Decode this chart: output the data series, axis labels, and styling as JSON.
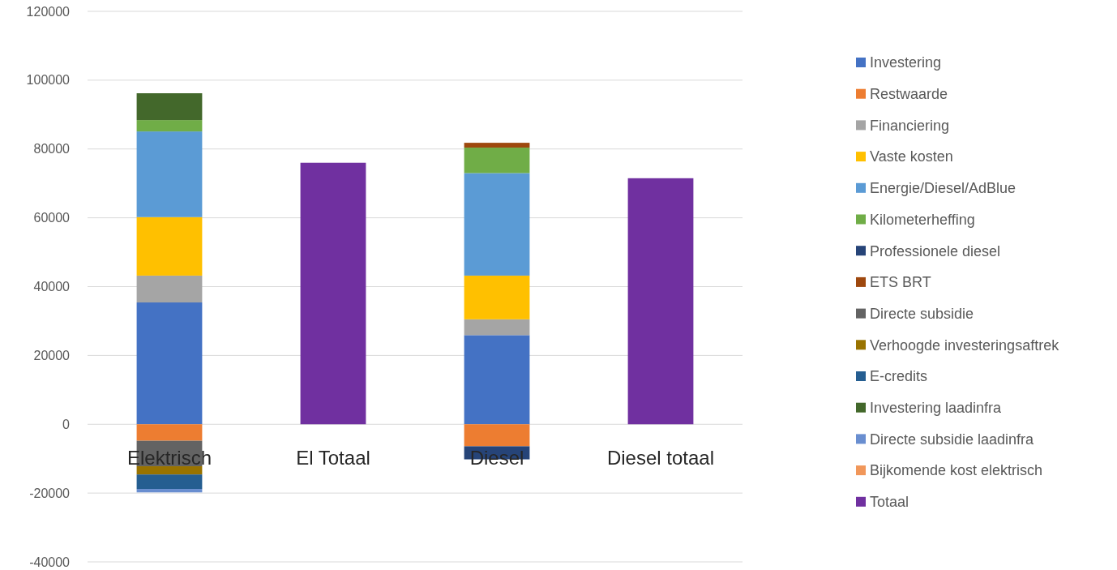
{
  "chart_data": {
    "type": "bar",
    "stacked": true,
    "categories": [
      "Elektrisch",
      "El Totaal",
      "Diesel",
      "Diesel totaal"
    ],
    "ylim": [
      -40000,
      120000
    ],
    "yticks": [
      -40000,
      -20000,
      0,
      20000,
      40000,
      60000,
      80000,
      100000,
      120000
    ],
    "grid": "y",
    "legend": "right",
    "series": [
      {
        "name": "Investering",
        "color": "#4472c4",
        "values": [
          35400,
          null,
          25900,
          null
        ]
      },
      {
        "name": "Restwaarde",
        "color": "#ed7d31",
        "values": [
          -4800,
          null,
          -6400,
          null
        ]
      },
      {
        "name": "Financiering",
        "color": "#a5a5a5",
        "values": [
          7800,
          null,
          4600,
          null
        ]
      },
      {
        "name": "Vaste kosten",
        "color": "#ffc000",
        "values": [
          17000,
          null,
          12700,
          null
        ]
      },
      {
        "name": "Energie/Diesel/AdBlue",
        "color": "#5b9bd5",
        "values": [
          24900,
          null,
          29800,
          null
        ]
      },
      {
        "name": "Kilometerheffing",
        "color": "#70ad47",
        "values": [
          3300,
          null,
          7400,
          null
        ]
      },
      {
        "name": "Professionele diesel",
        "color": "#264478",
        "values": [
          null,
          null,
          -3800,
          null
        ]
      },
      {
        "name": "ETS BRT",
        "color": "#9e480e",
        "values": [
          null,
          null,
          1400,
          null
        ]
      },
      {
        "name": "Directe subsidie",
        "color": "#636363",
        "values": [
          -7400,
          null,
          null,
          null
        ]
      },
      {
        "name": "Verhoogde investeringsaftrek",
        "color": "#997300",
        "values": [
          -2400,
          null,
          null,
          null
        ]
      },
      {
        "name": "E-credits",
        "color": "#255e91",
        "values": [
          -4200,
          null,
          null,
          null
        ]
      },
      {
        "name": "Investering laadinfra",
        "color": "#43682b",
        "values": [
          7800,
          null,
          null,
          null
        ]
      },
      {
        "name": "Directe subsidie laadinfra",
        "color": "#698ed0",
        "values": [
          -1000,
          null,
          null,
          null
        ]
      },
      {
        "name": "Bijkomende kost elektrisch",
        "color": "#f1975a",
        "values": [
          null,
          null,
          null,
          null
        ]
      },
      {
        "name": "Totaal",
        "color": "#7030a0",
        "values": [
          null,
          76000,
          null,
          71500
        ]
      }
    ]
  }
}
